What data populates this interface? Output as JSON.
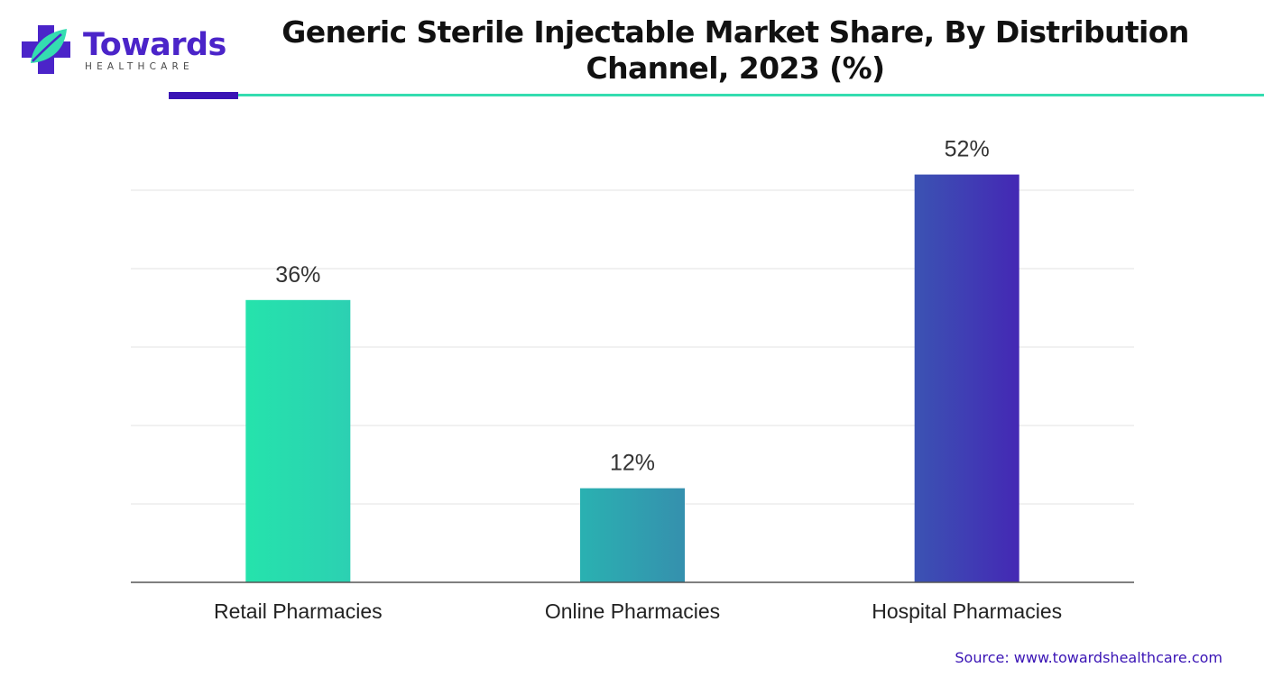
{
  "logo": {
    "word": "Towards",
    "sub": "HEALTHCARE"
  },
  "chart_data": {
    "type": "bar",
    "title": "Generic Sterile Injectable Market Share, By Distribution Channel, 2023 (%)",
    "categories": [
      "Retail Pharmacies",
      "Online Pharmacies",
      "Hospital Pharmacies"
    ],
    "values": [
      36,
      12,
      52
    ],
    "data_labels": [
      "36%",
      "12%",
      "52%"
    ],
    "ylim": [
      0,
      50
    ],
    "grid": true,
    "legend": "none",
    "xlabel": "",
    "ylabel": "",
    "bar_colors": [
      [
        "#25e3ac",
        "#2cd0b2"
      ],
      [
        "#2ab1b1",
        "#3590ae"
      ],
      [
        "#3b53b3",
        "#4428b4"
      ]
    ]
  },
  "source": "Source: www.towardshealthcare.com",
  "colors": {
    "brand_purple": "#3a14b5",
    "brand_teal": "#34ddb0",
    "grid": "#e3e3e3",
    "axis": "#555555"
  }
}
